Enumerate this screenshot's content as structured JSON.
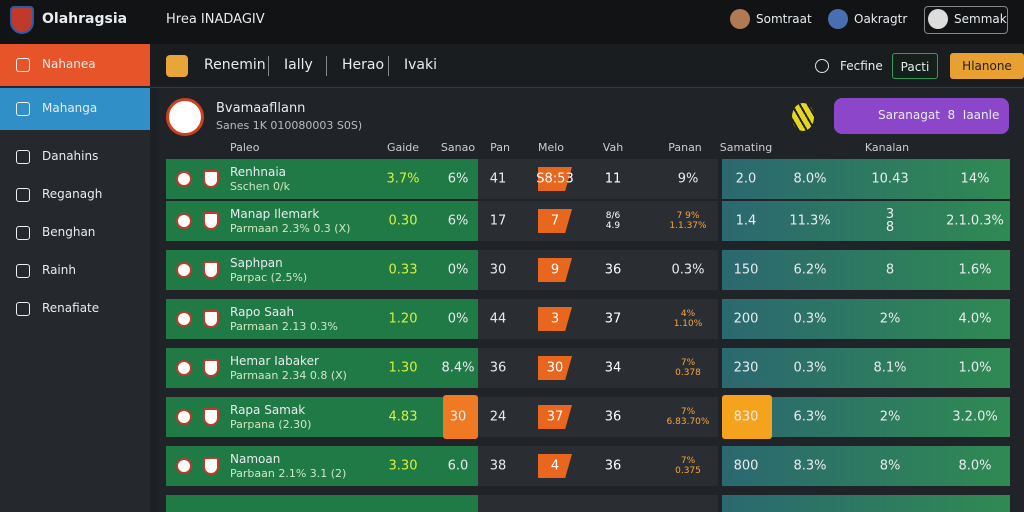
{
  "header": {
    "brand": "Olahragsia",
    "title": "Hrea INADAGIV",
    "users": [
      "Somtraat",
      "Oakragtr",
      "Semmak"
    ]
  },
  "sidebar": [
    "Nahanea",
    "Mahanga",
    "Danahins",
    "Reganagh",
    "Benghan",
    "Rainh",
    "Renafiate"
  ],
  "toolbar": {
    "tabs": [
      "Renemin",
      "Ially",
      "Herao",
      "Ivaki"
    ],
    "filter": "Fecfine",
    "buttons": [
      "Pacti",
      "Hlanone"
    ]
  },
  "panel": {
    "title": "Bvamaafllann",
    "subtitle": "Sanes 1K 010080003 S0S)",
    "promo": "Saranagat  8  Iaanle"
  },
  "table": {
    "columns": [
      "Paleo",
      "Gaide",
      "Sanao",
      "Pan",
      "Melo",
      "Vah",
      "Panan",
      "Samating",
      "Kanalan"
    ],
    "rows": [
      [
        "Renhnaia",
        "Sschen 0/k",
        "3.7%",
        "6%",
        "41",
        "S8:53",
        "11",
        "9%",
        "2.0",
        "8.0%",
        "10.43",
        "14%"
      ],
      [
        "Manap Ilemark",
        "Parmaan 2.3% 0.3 (X)",
        "0.30",
        "6%",
        "17",
        "7",
        "8/6\n4.9",
        "7 9%\n1.1.37%",
        "1.4",
        "11.3%",
        "3 8",
        "2.1.0.3%"
      ],
      [
        "Saphpan",
        "Parpac (2.5%)",
        "0.33",
        "0%",
        "30",
        "9",
        "36",
        "0.3%",
        "150",
        "6.2%",
        "8",
        "1.6%"
      ],
      [
        "Rapo Saah",
        "Parmaan 2.13 0.3%",
        "1.20",
        "0%",
        "44",
        "3",
        "37",
        "4%\n1.10%",
        "200",
        "0.3%",
        "2%",
        "4.0%"
      ],
      [
        "Hemar Iabaker",
        "Parmaan 2.34 0.8 (X)",
        "1.30",
        "8.4%",
        "36",
        "30",
        "34",
        "7%\n0.378",
        "230",
        "0.3%",
        "8.1%",
        "1.0%"
      ],
      [
        "Rapa Samak",
        "Parpana (2.30)",
        "4.83",
        "30",
        "24",
        "37",
        "36",
        "7%\n6.83.70%",
        "830",
        "6.3%",
        "2%",
        "3.2.0%"
      ],
      [
        "Namoan",
        "Parbaan 2.1% 3.1 (2)",
        "3.30",
        "6.0",
        "38",
        "4",
        "36",
        "7%\n0.375",
        "800",
        "8.3%",
        "8%",
        "8.0%"
      ]
    ]
  }
}
